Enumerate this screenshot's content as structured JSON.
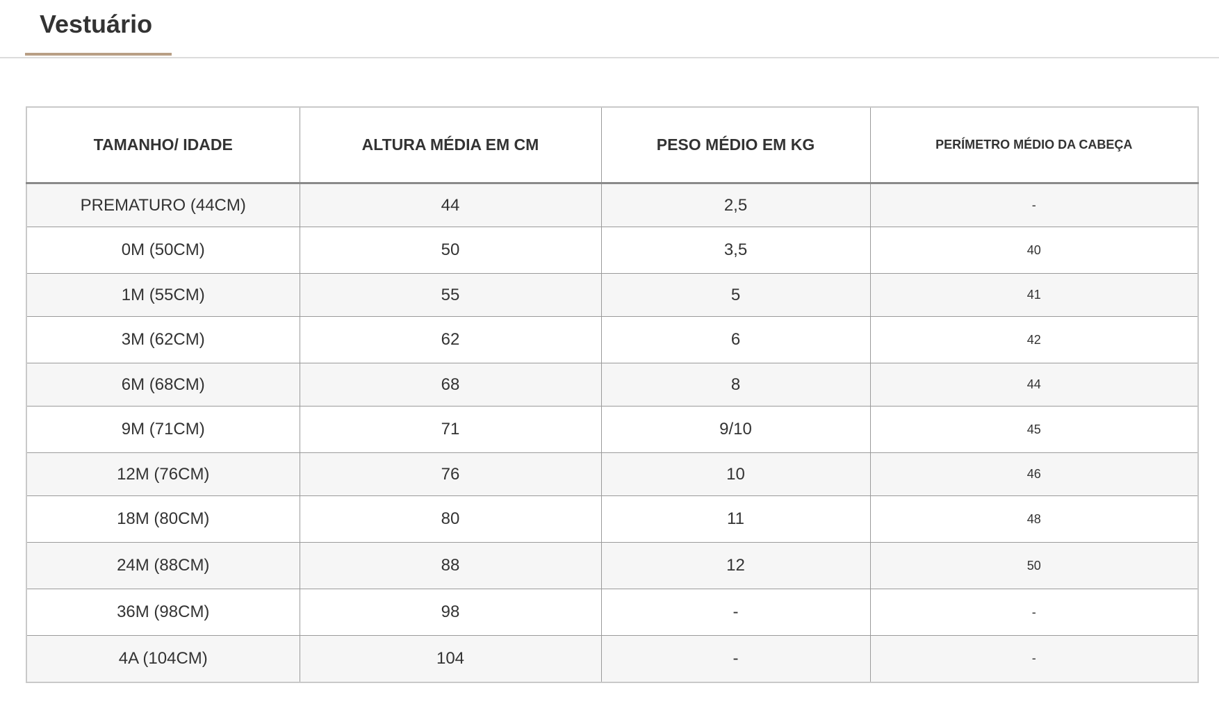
{
  "tab": {
    "label": "Vestuário",
    "accent": "#b89f85"
  },
  "table": {
    "headers": [
      "TAMANHO/ IDADE",
      "ALTURA MÉDIA EM CM",
      "PESO MÉDIO EM KG",
      "PERÍMETRO MÉDIO DA CABEÇA"
    ],
    "rows": [
      [
        "PREMATURO (44CM)",
        "44",
        "2,5",
        "-"
      ],
      [
        "0M (50CM)",
        "50",
        "3,5",
        "40"
      ],
      [
        "1M (55CM)",
        "55",
        "5",
        "41"
      ],
      [
        "3M (62CM)",
        "62",
        "6",
        "42"
      ],
      [
        "6M (68CM)",
        "68",
        "8",
        "44"
      ],
      [
        "9M (71CM)",
        "71",
        "9/10",
        "45"
      ],
      [
        "12M (76CM)",
        "76",
        "10",
        "46"
      ],
      [
        "18M (80CM)",
        "80",
        "11",
        "48"
      ],
      [
        "24M (88CM)",
        "88",
        "12",
        "50"
      ],
      [
        "36M (98CM)",
        "98",
        "-",
        "-"
      ],
      [
        "4A (104CM)",
        "104",
        "-",
        "-"
      ]
    ]
  }
}
